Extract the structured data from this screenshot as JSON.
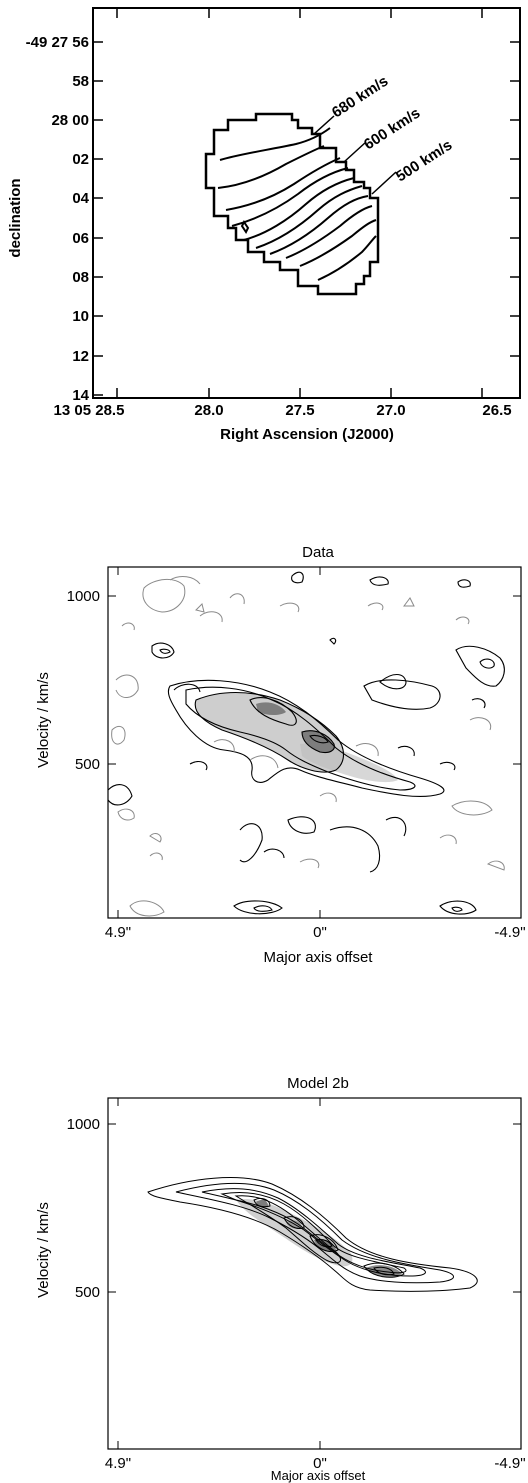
{
  "chart_data": [
    {
      "type": "contour",
      "title": "",
      "xlabel": "Right Ascension (J2000)",
      "ylabel": "declination",
      "x_ticks": [
        "13 05 28.5",
        "28.0",
        "27.5",
        "27.0",
        "26.5"
      ],
      "y_ticks": [
        "-49 27 56",
        "58",
        "28 00",
        "02",
        "04",
        "06",
        "08",
        "10",
        "12",
        "14"
      ],
      "annotations": [
        "680 km/s",
        "600 km/s",
        "500 km/s"
      ],
      "grid": false,
      "legend": "none"
    },
    {
      "type": "contour",
      "title": "Data",
      "xlabel": "Major axis offset",
      "ylabel": "Velocity / km/s",
      "x_ticks": [
        "4.9\"",
        "0\"",
        "-4.9\""
      ],
      "y_ticks": [
        "1000",
        "500"
      ],
      "xlim": [
        4.9,
        -4.9
      ],
      "ylim": [
        50,
        1160
      ],
      "grid": false,
      "legend": "none"
    },
    {
      "type": "contour",
      "title": "Model 2b",
      "xlabel": "Major axis offset",
      "ylabel": "Velocity / km/s",
      "x_ticks": [
        "4.9\"",
        "0\"",
        "-4.9\""
      ],
      "y_ticks": [
        "1000",
        "500"
      ],
      "xlim": [
        4.9,
        -4.9
      ],
      "ylim": [
        50,
        1160
      ],
      "grid": false,
      "legend": "none"
    }
  ]
}
